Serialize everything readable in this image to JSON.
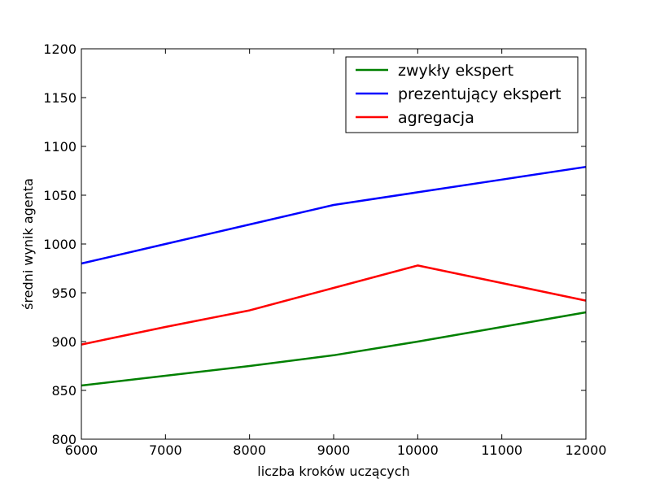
{
  "chart_data": {
    "type": "line",
    "title": "",
    "xlabel": "liczba kroków uczących",
    "ylabel": "średni wynik agenta",
    "xlim": [
      6000,
      12000
    ],
    "ylim": [
      800,
      1200
    ],
    "xticks": [
      6000,
      7000,
      8000,
      9000,
      10000,
      11000,
      12000
    ],
    "yticks": [
      800,
      850,
      900,
      950,
      1000,
      1050,
      1100,
      1150,
      1200
    ],
    "grid": false,
    "legend_position": "top-right",
    "series": [
      {
        "name": "zwykły ekspert",
        "color": "#008000",
        "x": [
          6000,
          7000,
          8000,
          9000,
          10000,
          11000,
          12000
        ],
        "y": [
          855,
          865,
          875,
          886,
          900,
          915,
          930
        ]
      },
      {
        "name": "prezentujący ekspert",
        "color": "#0000ff",
        "x": [
          6000,
          7000,
          8000,
          9000,
          10000,
          11000,
          12000
        ],
        "y": [
          980,
          1000,
          1020,
          1040,
          1053,
          1066,
          1079
        ]
      },
      {
        "name": "agregacja",
        "color": "#ff0000",
        "x": [
          6000,
          7000,
          8000,
          9000,
          10000,
          11000,
          12000
        ],
        "y": [
          897,
          915,
          932,
          955,
          978,
          960,
          942
        ]
      }
    ]
  }
}
